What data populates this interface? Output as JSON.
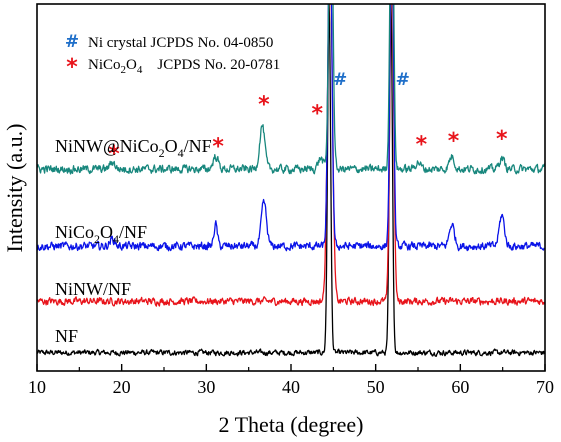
{
  "chart_data": {
    "type": "line",
    "xlabel": "2 Theta (degree)",
    "ylabel": "Intensity (a.u.)",
    "xlim": [
      10,
      70
    ],
    "xticks": [
      10,
      20,
      30,
      40,
      50,
      60,
      70
    ],
    "y_tick_labels": false,
    "grid": false,
    "legend": {
      "placement": "top-left",
      "entries": [
        {
          "symbol": "#",
          "color": "#1f6fc9",
          "label": "Ni crystal  JCPDS No. 04-0850"
        },
        {
          "symbol": "*",
          "color": "#e8141b",
          "label_prefix": "NiCo",
          "sub1": "2",
          "label_mid": "O",
          "sub2": "4",
          "label_suffix": "    JCPDS No. 20-0781"
        }
      ]
    },
    "series": [
      {
        "label_parts": [
          "NF"
        ],
        "color": "#000000",
        "baseline": 0.05,
        "noise": 0.006,
        "peaks": [
          {
            "x": 44.5,
            "height": 0.95,
            "width": 0.18
          },
          {
            "x": 51.8,
            "height": 0.95,
            "width": 0.18
          }
        ]
      },
      {
        "label_parts": [
          "NiNW/NF"
        ],
        "color": "#e8141b",
        "baseline": 0.19,
        "noise": 0.008,
        "peaks": [
          {
            "x": 44.6,
            "height": 0.95,
            "width": 0.28
          },
          {
            "x": 51.9,
            "height": 0.95,
            "width": 0.22
          }
        ]
      },
      {
        "label_parts": [
          "NiCo",
          "2",
          "O",
          "4",
          "/NF"
        ],
        "color": "#0b14e8",
        "baseline": 0.34,
        "noise": 0.009,
        "peaks": [
          {
            "x": 18.9,
            "height": 0.02,
            "width": 0.3
          },
          {
            "x": 31.1,
            "height": 0.06,
            "width": 0.2
          },
          {
            "x": 36.8,
            "height": 0.12,
            "width": 0.3
          },
          {
            "x": 44.6,
            "height": 0.95,
            "width": 0.22
          },
          {
            "x": 51.9,
            "height": 0.95,
            "width": 0.2
          },
          {
            "x": 59.0,
            "height": 0.06,
            "width": 0.3
          },
          {
            "x": 64.9,
            "height": 0.085,
            "width": 0.3
          }
        ]
      },
      {
        "label_parts": [
          "NiNW@NiCo",
          "2",
          "O",
          "4",
          "/NF"
        ],
        "color": "#18877d",
        "baseline": 0.55,
        "noise": 0.009,
        "peaks": [
          {
            "x": 18.9,
            "height": 0.02,
            "width": 0.3
          },
          {
            "x": 31.1,
            "height": 0.035,
            "width": 0.3
          },
          {
            "x": 36.6,
            "height": 0.12,
            "width": 0.3
          },
          {
            "x": 43.5,
            "height": 0.03,
            "width": 0.3
          },
          {
            "x": 44.7,
            "height": 0.95,
            "width": 0.22
          },
          {
            "x": 51.9,
            "height": 0.95,
            "width": 0.2
          },
          {
            "x": 55.0,
            "height": 0.02,
            "width": 0.3
          },
          {
            "x": 59.0,
            "height": 0.035,
            "width": 0.3
          },
          {
            "x": 64.9,
            "height": 0.03,
            "width": 0.3
          }
        ]
      }
    ],
    "annotations": [
      {
        "text": "*",
        "kind": "star",
        "x": 19.1,
        "y": 0.6
      },
      {
        "text": "*",
        "kind": "star",
        "x": 31.4,
        "y": 0.62
      },
      {
        "text": "*",
        "kind": "star",
        "x": 36.8,
        "y": 0.735
      },
      {
        "text": "*",
        "kind": "star",
        "x": 43.1,
        "y": 0.71
      },
      {
        "text": "*",
        "kind": "star",
        "x": 55.4,
        "y": 0.625
      },
      {
        "text": "*",
        "kind": "star",
        "x": 59.2,
        "y": 0.635
      },
      {
        "text": "*",
        "kind": "star",
        "x": 64.9,
        "y": 0.64
      },
      {
        "text": "#",
        "kind": "hash",
        "x": 45.8,
        "y": 0.795
      },
      {
        "text": "#",
        "kind": "hash",
        "x": 53.2,
        "y": 0.795
      }
    ]
  }
}
